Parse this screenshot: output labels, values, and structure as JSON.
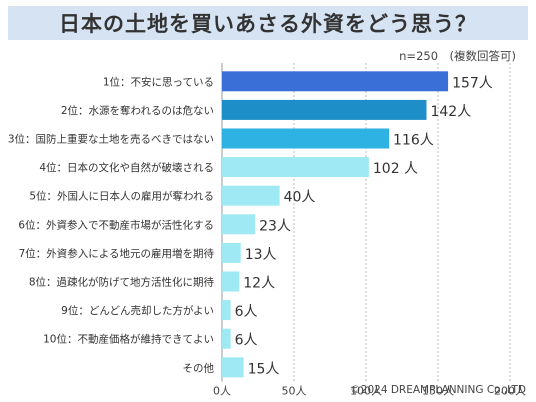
{
  "title": "日本の土地を買いあさる外資をどう思う？",
  "note": "n=250　(複数回答可)",
  "copyright": "©2024 DREAMPLANNING Co.,LTD",
  "unit": "人",
  "chart_data": {
    "type": "bar",
    "orientation": "horizontal",
    "categories": [
      "1位：不安に思っている",
      "2位：水源を奪われるのは危ない",
      "3位：国防上重要な土地を売るべきではない",
      "4位：日本の文化や自然が破壊される",
      "5位：外国人に日本人の雇用が奪われる",
      "6位：外資参入で不動産市場が活性化する",
      "7位：外資参入による地元の雇用増を期待",
      "8位：過疎化が防げて地方活性化に期待",
      "9位：どんどん売却した方がよい",
      "10位：不動産価格が維持できてよい",
      "その他"
    ],
    "values": [
      157,
      142,
      116,
      102,
      40,
      23,
      13,
      12,
      6,
      6,
      15
    ],
    "value_labels": [
      "157人",
      "142人",
      "116人",
      "102 人",
      "40人",
      "23人",
      "13人",
      "12人",
      "6人",
      "6人",
      "15人"
    ],
    "xlim": [
      0,
      200
    ],
    "xticks": [
      0,
      50,
      100,
      150,
      200
    ],
    "xtick_labels": [
      "0人",
      "50人",
      "100人",
      "150人",
      "200人"
    ],
    "colors": [
      "#3b6fd8",
      "#1e8ec9",
      "#2eb1e3",
      "#9ee9f3",
      "#9ee9f3",
      "#9ee9f3",
      "#9ee9f3",
      "#9ee9f3",
      "#9ee9f3",
      "#9ee9f3",
      "#9ee9f3"
    ],
    "grid": "vertical dotted"
  }
}
